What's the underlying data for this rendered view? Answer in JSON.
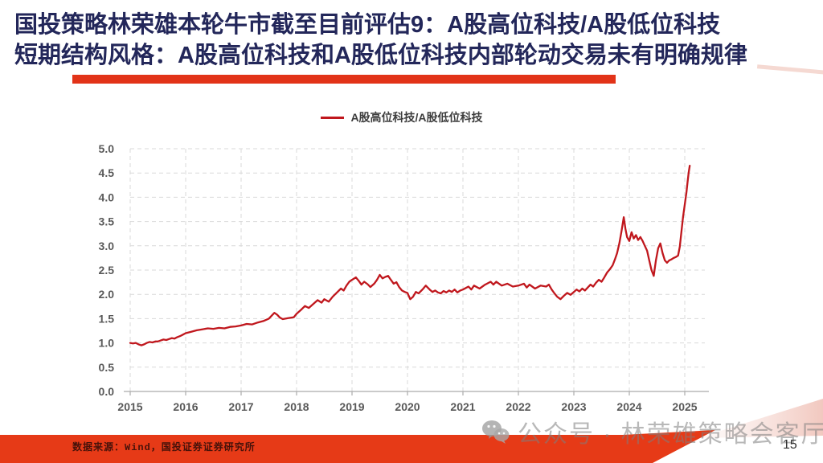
{
  "slide": {
    "title_line1": "国投策略林荣雄本轮牛市截至目前评估9：A股高位科技/A股低位科技",
    "title_line2": "短期结构风格：A股高位科技和A股低位科技内部轮动交易未有明确规律",
    "source": "数据来源：Wind，国投证券证券研究所",
    "watermark": "公众号 · 林荣雄策略会客厅",
    "watermark_icon": "wechat-icon",
    "page_number": "15",
    "colors": {
      "title_navy": "#23275a",
      "accent_red": "#e23318",
      "footer_red": "#e63a17",
      "line_red": "#c0171d",
      "grid_gray": "#d9d9d9",
      "axis_gray": "#ababab",
      "tick_label_gray": "#595959"
    }
  },
  "chart_data": {
    "type": "line",
    "title": "",
    "legend": [
      "A股高位科技/A股低位科技"
    ],
    "legend_position": "top",
    "grid": true,
    "xlim": [
      2015,
      2025.3
    ],
    "ylim": [
      0,
      5
    ],
    "x_ticks": [
      2015,
      2016,
      2017,
      2018,
      2019,
      2020,
      2021,
      2022,
      2023,
      2024,
      2025
    ],
    "y_ticks": [
      5.0,
      4.5,
      4.0,
      3.5,
      3.0,
      2.5,
      2.0,
      1.5,
      1.0,
      0.5,
      0.0
    ],
    "series": [
      {
        "name": "A股高位科技/A股低位科技",
        "color": "#c0171d",
        "points": [
          [
            2015.0,
            1.0
          ],
          [
            2015.05,
            0.99
          ],
          [
            2015.1,
            1.0
          ],
          [
            2015.15,
            0.97
          ],
          [
            2015.2,
            0.95
          ],
          [
            2015.25,
            0.97
          ],
          [
            2015.3,
            1.0
          ],
          [
            2015.35,
            1.02
          ],
          [
            2015.4,
            1.01
          ],
          [
            2015.45,
            1.03
          ],
          [
            2015.5,
            1.03
          ],
          [
            2015.55,
            1.05
          ],
          [
            2015.6,
            1.07
          ],
          [
            2015.65,
            1.06
          ],
          [
            2015.7,
            1.08
          ],
          [
            2015.75,
            1.1
          ],
          [
            2015.8,
            1.09
          ],
          [
            2015.85,
            1.12
          ],
          [
            2015.9,
            1.14
          ],
          [
            2015.95,
            1.17
          ],
          [
            2016.0,
            1.2
          ],
          [
            2016.1,
            1.23
          ],
          [
            2016.2,
            1.26
          ],
          [
            2016.3,
            1.28
          ],
          [
            2016.4,
            1.3
          ],
          [
            2016.5,
            1.29
          ],
          [
            2016.6,
            1.31
          ],
          [
            2016.7,
            1.3
          ],
          [
            2016.8,
            1.33
          ],
          [
            2016.9,
            1.34
          ],
          [
            2017.0,
            1.36
          ],
          [
            2017.1,
            1.39
          ],
          [
            2017.2,
            1.38
          ],
          [
            2017.3,
            1.42
          ],
          [
            2017.4,
            1.45
          ],
          [
            2017.5,
            1.5
          ],
          [
            2017.55,
            1.56
          ],
          [
            2017.6,
            1.62
          ],
          [
            2017.65,
            1.58
          ],
          [
            2017.7,
            1.52
          ],
          [
            2017.75,
            1.49
          ],
          [
            2017.85,
            1.51
          ],
          [
            2017.95,
            1.53
          ],
          [
            2018.0,
            1.6
          ],
          [
            2018.08,
            1.68
          ],
          [
            2018.15,
            1.76
          ],
          [
            2018.22,
            1.72
          ],
          [
            2018.3,
            1.8
          ],
          [
            2018.38,
            1.88
          ],
          [
            2018.45,
            1.83
          ],
          [
            2018.5,
            1.9
          ],
          [
            2018.58,
            1.85
          ],
          [
            2018.65,
            1.95
          ],
          [
            2018.72,
            2.03
          ],
          [
            2018.8,
            2.12
          ],
          [
            2018.85,
            2.08
          ],
          [
            2018.9,
            2.18
          ],
          [
            2018.95,
            2.26
          ],
          [
            2019.0,
            2.3
          ],
          [
            2019.07,
            2.35
          ],
          [
            2019.12,
            2.28
          ],
          [
            2019.17,
            2.2
          ],
          [
            2019.22,
            2.26
          ],
          [
            2019.28,
            2.21
          ],
          [
            2019.33,
            2.15
          ],
          [
            2019.4,
            2.22
          ],
          [
            2019.45,
            2.3
          ],
          [
            2019.5,
            2.4
          ],
          [
            2019.55,
            2.33
          ],
          [
            2019.6,
            2.36
          ],
          [
            2019.65,
            2.38
          ],
          [
            2019.7,
            2.3
          ],
          [
            2019.75,
            2.22
          ],
          [
            2019.8,
            2.25
          ],
          [
            2019.85,
            2.15
          ],
          [
            2019.9,
            2.08
          ],
          [
            2019.95,
            2.05
          ],
          [
            2020.0,
            2.03
          ],
          [
            2020.05,
            1.9
          ],
          [
            2020.1,
            1.95
          ],
          [
            2020.15,
            2.05
          ],
          [
            2020.2,
            2.02
          ],
          [
            2020.27,
            2.1
          ],
          [
            2020.33,
            2.18
          ],
          [
            2020.4,
            2.1
          ],
          [
            2020.45,
            2.05
          ],
          [
            2020.5,
            2.08
          ],
          [
            2020.55,
            2.04
          ],
          [
            2020.6,
            2.02
          ],
          [
            2020.65,
            2.07
          ],
          [
            2020.7,
            2.04
          ],
          [
            2020.75,
            2.08
          ],
          [
            2020.8,
            2.05
          ],
          [
            2020.85,
            2.1
          ],
          [
            2020.9,
            2.04
          ],
          [
            2020.95,
            2.08
          ],
          [
            2021.0,
            2.1
          ],
          [
            2021.1,
            2.16
          ],
          [
            2021.15,
            2.1
          ],
          [
            2021.2,
            2.18
          ],
          [
            2021.3,
            2.12
          ],
          [
            2021.4,
            2.2
          ],
          [
            2021.5,
            2.26
          ],
          [
            2021.55,
            2.2
          ],
          [
            2021.6,
            2.26
          ],
          [
            2021.7,
            2.18
          ],
          [
            2021.8,
            2.22
          ],
          [
            2021.9,
            2.16
          ],
          [
            2022.0,
            2.18
          ],
          [
            2022.1,
            2.22
          ],
          [
            2022.15,
            2.14
          ],
          [
            2022.2,
            2.2
          ],
          [
            2022.3,
            2.12
          ],
          [
            2022.4,
            2.18
          ],
          [
            2022.5,
            2.16
          ],
          [
            2022.55,
            2.2
          ],
          [
            2022.6,
            2.1
          ],
          [
            2022.65,
            2.02
          ],
          [
            2022.7,
            1.95
          ],
          [
            2022.76,
            1.9
          ],
          [
            2022.82,
            1.97
          ],
          [
            2022.88,
            2.03
          ],
          [
            2022.94,
            1.99
          ],
          [
            2023.0,
            2.05
          ],
          [
            2023.05,
            2.1
          ],
          [
            2023.1,
            2.06
          ],
          [
            2023.15,
            2.12
          ],
          [
            2023.2,
            2.08
          ],
          [
            2023.25,
            2.14
          ],
          [
            2023.3,
            2.2
          ],
          [
            2023.35,
            2.16
          ],
          [
            2023.4,
            2.24
          ],
          [
            2023.45,
            2.3
          ],
          [
            2023.5,
            2.26
          ],
          [
            2023.55,
            2.35
          ],
          [
            2023.6,
            2.45
          ],
          [
            2023.65,
            2.52
          ],
          [
            2023.7,
            2.6
          ],
          [
            2023.74,
            2.72
          ],
          [
            2023.78,
            2.85
          ],
          [
            2023.82,
            3.05
          ],
          [
            2023.86,
            3.3
          ],
          [
            2023.9,
            3.59
          ],
          [
            2023.93,
            3.35
          ],
          [
            2023.96,
            3.18
          ],
          [
            2024.0,
            3.1
          ],
          [
            2024.04,
            3.28
          ],
          [
            2024.08,
            3.15
          ],
          [
            2024.12,
            3.22
          ],
          [
            2024.16,
            3.12
          ],
          [
            2024.2,
            3.18
          ],
          [
            2024.24,
            3.1
          ],
          [
            2024.28,
            3.0
          ],
          [
            2024.32,
            2.9
          ],
          [
            2024.36,
            2.7
          ],
          [
            2024.4,
            2.5
          ],
          [
            2024.44,
            2.38
          ],
          [
            2024.48,
            2.7
          ],
          [
            2024.52,
            2.95
          ],
          [
            2024.56,
            3.05
          ],
          [
            2024.6,
            2.85
          ],
          [
            2024.64,
            2.7
          ],
          [
            2024.68,
            2.65
          ],
          [
            2024.72,
            2.7
          ],
          [
            2024.76,
            2.72
          ],
          [
            2024.8,
            2.75
          ],
          [
            2024.84,
            2.77
          ],
          [
            2024.88,
            2.8
          ],
          [
            2024.91,
            2.98
          ],
          [
            2024.94,
            3.3
          ],
          [
            2024.97,
            3.6
          ],
          [
            2025.0,
            3.85
          ],
          [
            2025.03,
            4.1
          ],
          [
            2025.05,
            4.3
          ],
          [
            2025.07,
            4.5
          ],
          [
            2025.09,
            4.65
          ]
        ]
      }
    ]
  }
}
